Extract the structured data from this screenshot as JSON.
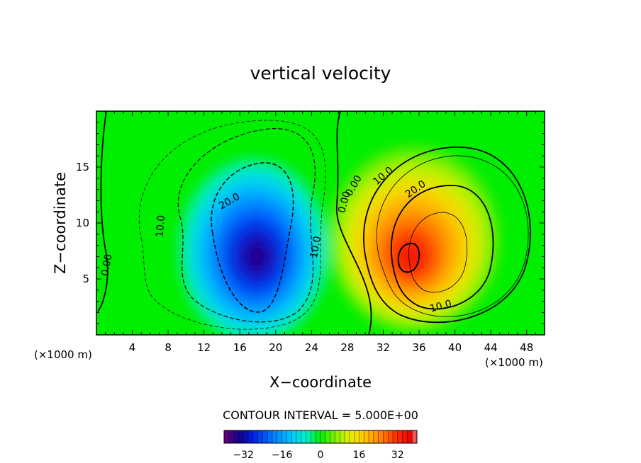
{
  "chart_data": {
    "type": "heatmap",
    "title": "vertical velocity",
    "xlabel": "X−coordinate",
    "ylabel": "Z−coordinate",
    "x_unit_left": "(×1000 m)",
    "x_unit_right": "(×1000 m)",
    "xlim": [
      0,
      50
    ],
    "ylim": [
      0,
      20
    ],
    "x_ticks": [
      "4",
      "8",
      "12",
      "16",
      "20",
      "24",
      "28",
      "32",
      "36",
      "40",
      "44",
      "48"
    ],
    "y_ticks": [
      "5",
      "10",
      "15"
    ],
    "contour_interval_text": "CONTOUR INTERVAL = 5.000E+00",
    "contour_interval": 5.0,
    "colorbar": {
      "range": [
        -40,
        40
      ],
      "tick_labels": [
        "−32",
        "−16",
        "0",
        "16",
        "32"
      ],
      "tick_values": [
        -32,
        -16,
        0,
        16,
        32
      ]
    },
    "contour_labels": [
      {
        "text": "0.00",
        "x": 1.5,
        "z": 6.2
      },
      {
        "text": "10.0",
        "x": 7.5,
        "z": 9.7
      },
      {
        "text": "20.0",
        "x": 15.0,
        "z": 11.7
      },
      {
        "text": "10.0",
        "x": 24.8,
        "z": 7.8
      },
      {
        "text": "0.00",
        "x": 28.0,
        "z": 11.8
      },
      {
        "text": "0.00",
        "x": 29.0,
        "z": 13.2
      },
      {
        "text": "10.0",
        "x": 32.2,
        "z": 14.0
      },
      {
        "text": "20.0",
        "x": 35.8,
        "z": 12.8
      },
      {
        "text": "10.0",
        "x": 38.5,
        "z": 2.3
      }
    ],
    "features": [
      {
        "kind": "downdraft",
        "x": 18.0,
        "z": 7.5,
        "peak": -37
      },
      {
        "kind": "updraft",
        "x": 35.0,
        "z": 7.0,
        "peak": 35
      }
    ]
  }
}
